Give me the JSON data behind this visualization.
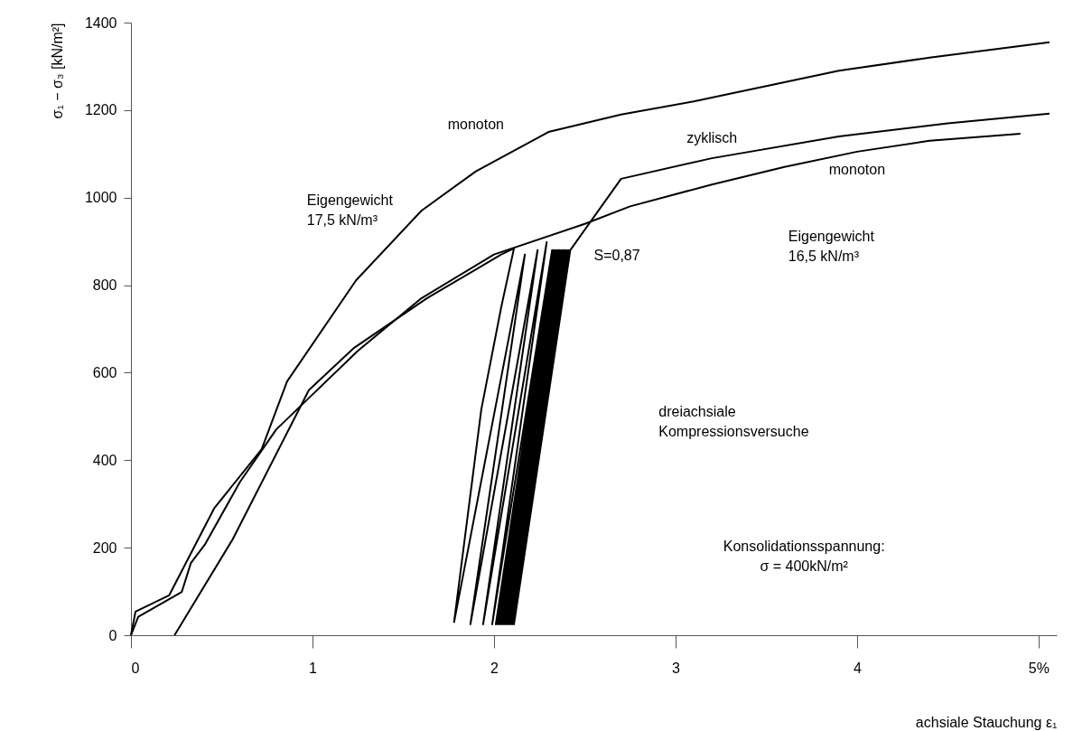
{
  "chart_data": {
    "type": "line",
    "xlabel": "achsiale Stauchung   ε₁",
    "ylabel": "σ₁ − σ₃  [kN/m²]",
    "xlim": [
      0,
      5.1
    ],
    "ylim": [
      0,
      1400
    ],
    "xticks": [
      0,
      1,
      2,
      3,
      4,
      {
        "value": 5,
        "label": "5%"
      }
    ],
    "yticks": [
      0,
      200,
      400,
      600,
      800,
      1000,
      1200,
      1400
    ],
    "series": [
      {
        "name": "monoton",
        "color": "#000000",
        "x": [
          0,
          0.025,
          0.21,
          0.46,
          0.72,
          0.86,
          1.24,
          1.6,
          1.9,
          2.3,
          2.7,
          3.1,
          3.5,
          3.9,
          4.4,
          5.06
        ],
        "values": [
          0,
          54,
          91,
          291,
          425,
          580,
          811,
          970,
          1060,
          1150,
          1190,
          1220,
          1255,
          1290,
          1320,
          1355
        ]
      },
      {
        "name": "zyklisch",
        "color": "#000000",
        "x": [
          0.24,
          0.56,
          0.98,
          1.23,
          1.63,
          2.04,
          2.11,
          2.04,
          1.93,
          1.78,
          2.17,
          1.87,
          2.24,
          1.94,
          2.29,
          1.99,
          2.32,
          2.01,
          2.33,
          2.02,
          2.34,
          2.03,
          2.35,
          2.04,
          2.36,
          2.05,
          2.37,
          2.06,
          2.38,
          2.07,
          2.39,
          2.08,
          2.4,
          2.09,
          2.41,
          2.1,
          2.42,
          2.11,
          2.42,
          2.7,
          3.2,
          3.9,
          4.5,
          5.06
        ],
        "values": [
          0,
          219,
          560,
          657,
          770,
          870,
          884,
          750,
          516,
          30,
          870,
          25,
          880,
          25,
          898,
          25,
          880,
          25,
          880,
          25,
          880,
          25,
          880,
          25,
          880,
          25,
          880,
          25,
          880,
          25,
          880,
          25,
          880,
          25,
          880,
          25,
          880,
          25,
          880,
          1043,
          1090,
          1140,
          1170,
          1192
        ]
      },
      {
        "name": "monoton",
        "color": "#000000",
        "x": [
          0,
          0.04,
          0.28,
          0.33,
          0.41,
          0.6,
          0.8,
          1.0,
          1.25,
          1.6,
          2.0,
          2.5,
          2.75,
          3.2,
          3.6,
          4.0,
          4.4,
          4.9
        ],
        "values": [
          0,
          42,
          99,
          165,
          209,
          350,
          470,
          550,
          650,
          770,
          870,
          940,
          980,
          1030,
          1070,
          1105,
          1130,
          1146
        ]
      }
    ],
    "annotations": [
      "Eigengewicht\n17,5 kN/m³",
      "Eigengewicht\n16,5 kN/m³",
      "S=0,87",
      "dreiachsiale\nKompressionsversuche",
      "Konsolidationsspannung:\nσ = 400kN/m²"
    ]
  }
}
